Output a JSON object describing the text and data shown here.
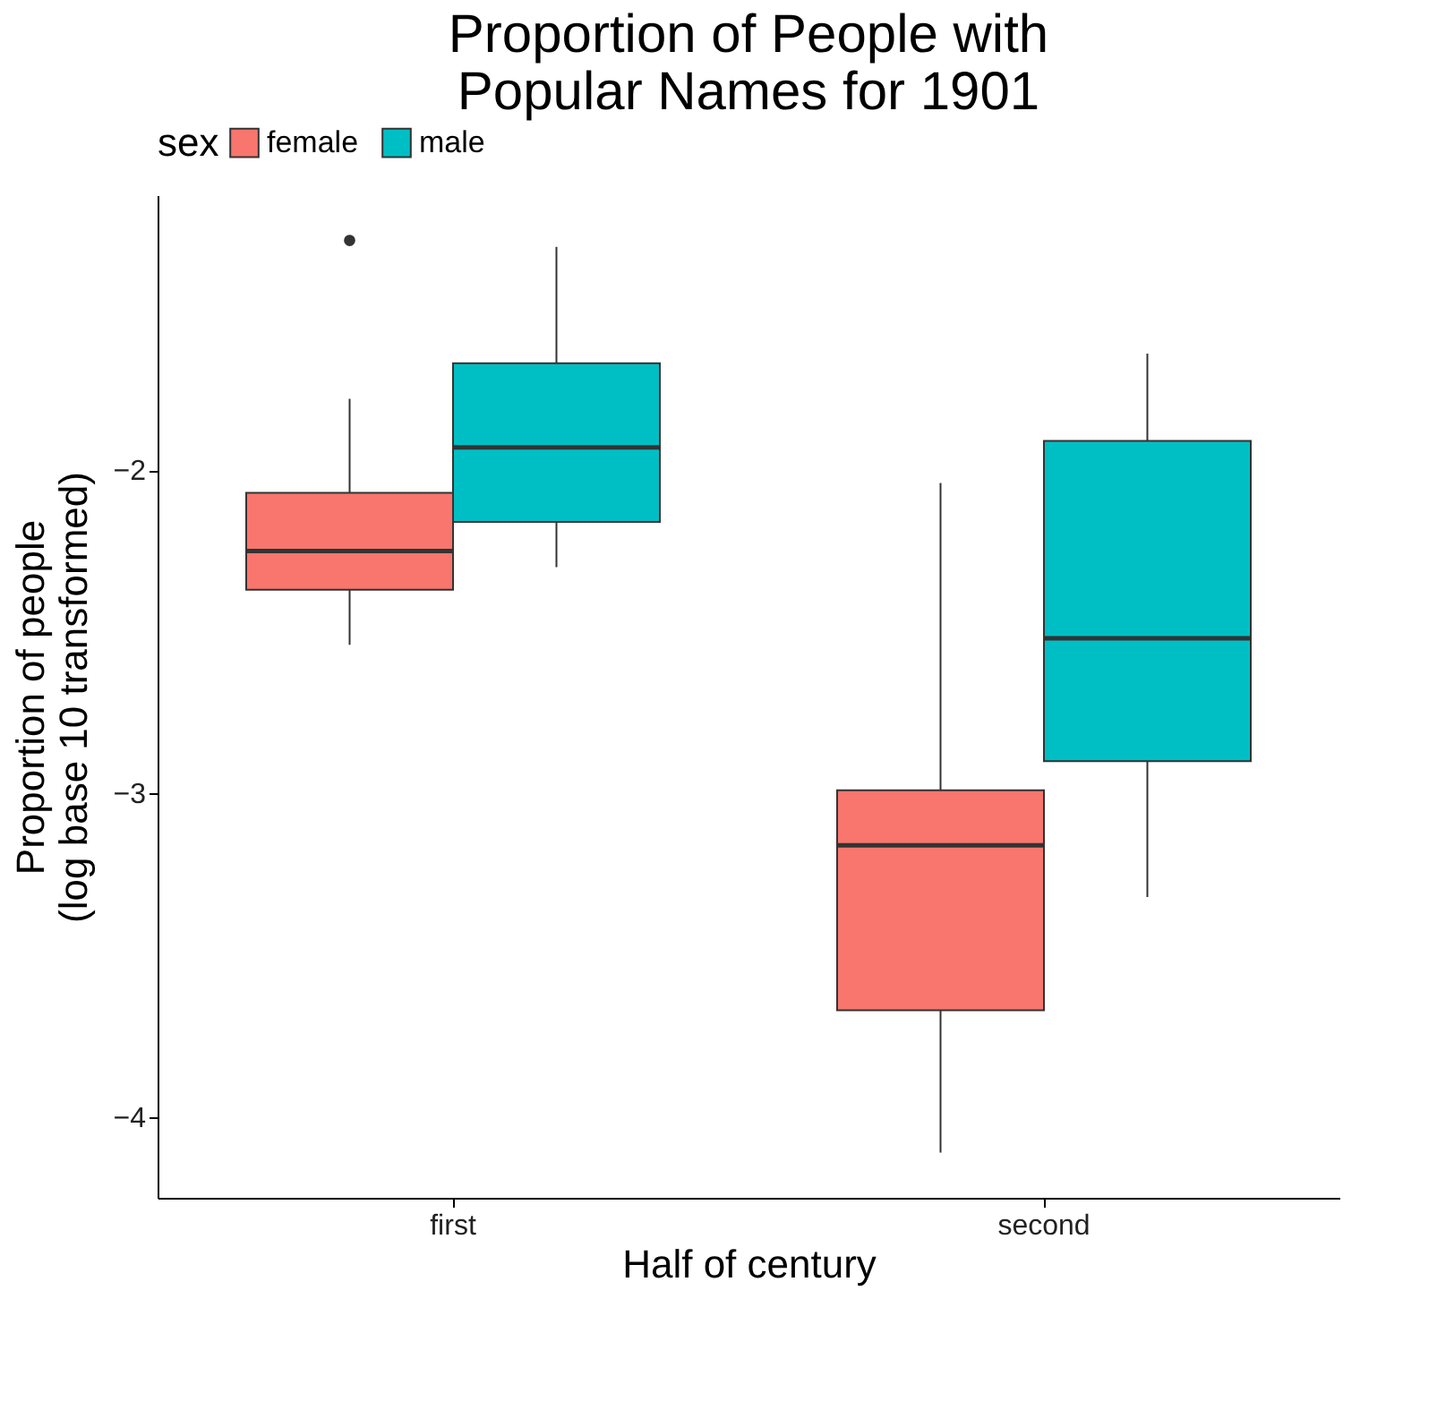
{
  "chart_data": {
    "type": "box",
    "title": "Proportion of People with\nPopular Names for 1901",
    "xlabel": "Half of century",
    "ylabel": "Proportion of people\n(log base 10 transformed)",
    "legend_title": "sex",
    "legend": "top",
    "grid": false,
    "categories": [
      "first",
      "second"
    ],
    "ylim": [
      -4.25,
      -1.15
    ],
    "yticks": [
      -4,
      -3,
      -2
    ],
    "series": [
      {
        "name": "female",
        "color": "#f8766d",
        "boxes": [
          {
            "low": -2.54,
            "q1": -2.37,
            "median": -2.25,
            "q3": -2.07,
            "high": -1.78,
            "outliers": [
              -1.29
            ]
          },
          {
            "low": -4.11,
            "q1": -3.67,
            "median": -3.16,
            "q3": -2.99,
            "high": -2.04
          }
        ]
      },
      {
        "name": "male",
        "color": "#00bfc4",
        "boxes": [
          {
            "low": -2.3,
            "q1": -2.16,
            "median": -1.93,
            "q3": -1.67,
            "high": -1.31
          },
          {
            "low": -3.32,
            "q1": -2.9,
            "median": -2.52,
            "q3": -1.91,
            "high": -1.64
          }
        ]
      }
    ]
  }
}
